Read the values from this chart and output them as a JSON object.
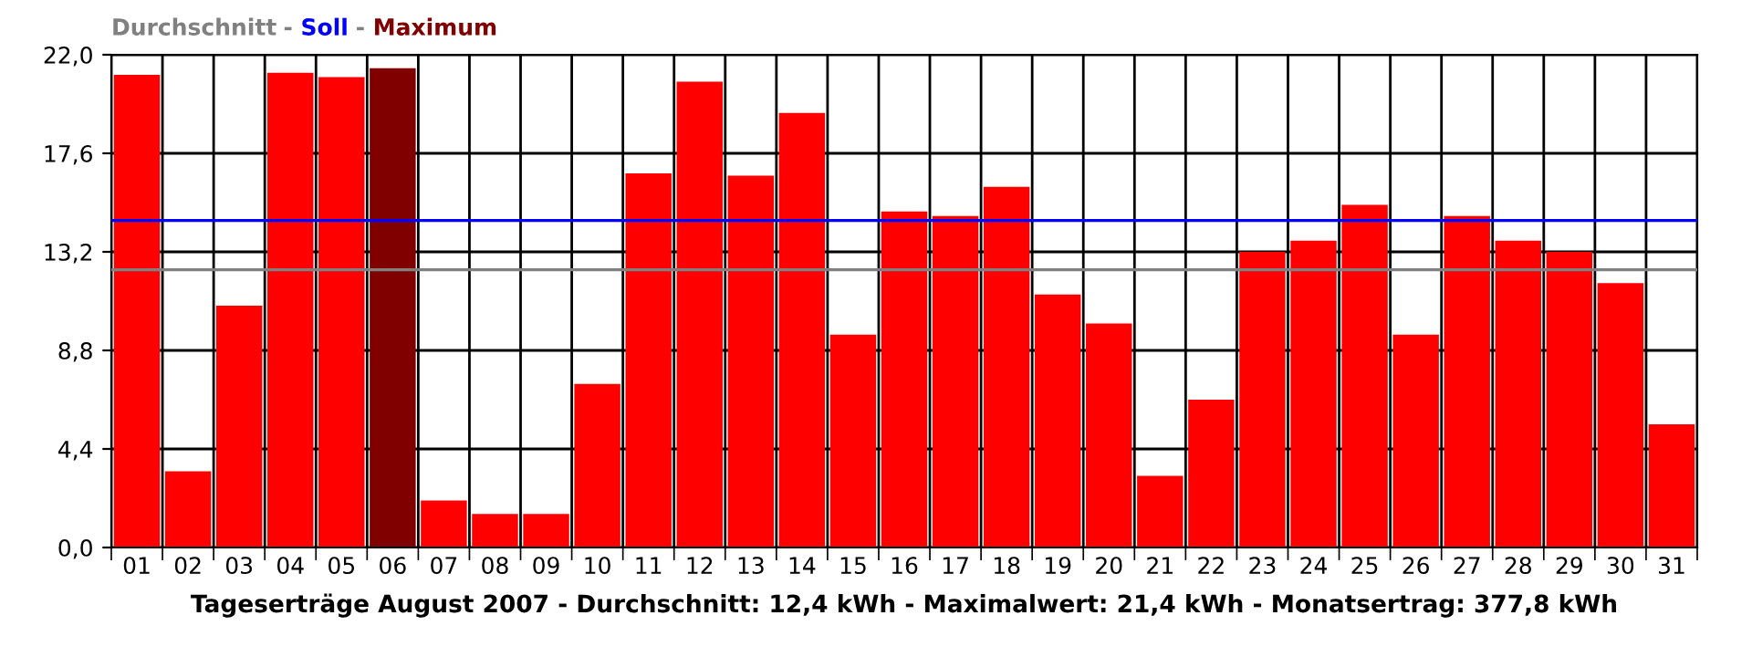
{
  "chart_data": {
    "type": "bar",
    "xlabel": "Tageserträge August 2007 - Durchschnitt: 12,4 kWh - Maximalwert: 21,4 kWh - Monatsertrag: 377,8 kWh",
    "categories": [
      "01",
      "02",
      "03",
      "04",
      "05",
      "06",
      "07",
      "08",
      "09",
      "10",
      "11",
      "12",
      "13",
      "14",
      "15",
      "16",
      "17",
      "18",
      "19",
      "20",
      "21",
      "22",
      "23",
      "24",
      "25",
      "26",
      "27",
      "28",
      "29",
      "30",
      "31"
    ],
    "values": [
      21.1,
      3.4,
      10.8,
      21.2,
      21.0,
      21.4,
      2.1,
      1.5,
      1.5,
      7.3,
      16.7,
      20.8,
      16.6,
      19.4,
      9.5,
      15.0,
      14.8,
      16.1,
      11.3,
      10.0,
      3.2,
      6.6,
      13.2,
      13.7,
      15.3,
      9.5,
      14.8,
      13.7,
      13.2,
      11.8,
      5.5
    ],
    "colors": [
      "#ff0000",
      "#ff0000",
      "#ff0000",
      "#ff0000",
      "#ff0000",
      "#800000",
      "#ff0000",
      "#ff0000",
      "#ff0000",
      "#ff0000",
      "#ff0000",
      "#ff0000",
      "#ff0000",
      "#ff0000",
      "#ff0000",
      "#ff0000",
      "#ff0000",
      "#ff0000",
      "#ff0000",
      "#ff0000",
      "#ff0000",
      "#ff0000",
      "#ff0000",
      "#ff0000",
      "#ff0000",
      "#ff0000",
      "#ff0000",
      "#ff0000",
      "#ff0000",
      "#ff0000",
      "#ff0000"
    ],
    "ylim": [
      0,
      22
    ],
    "yticks": [
      {
        "value": 0,
        "label": "0,0"
      },
      {
        "value": 4.4,
        "label": "4,4"
      },
      {
        "value": 8.8,
        "label": "8,8"
      },
      {
        "value": 13.2,
        "label": "13,2"
      },
      {
        "value": 17.6,
        "label": "17,6"
      },
      {
        "value": 22,
        "label": "22,0"
      }
    ],
    "ref_lines": [
      {
        "axis": "y",
        "value": 12.4,
        "label": "Durchschnitt",
        "color": "#808080"
      },
      {
        "axis": "y",
        "value": 14.6,
        "label": "Soll",
        "color": "#0000ff"
      }
    ],
    "annotations": [
      "Maximum",
      "-"
    ],
    "grid": true,
    "legend": "top left"
  }
}
